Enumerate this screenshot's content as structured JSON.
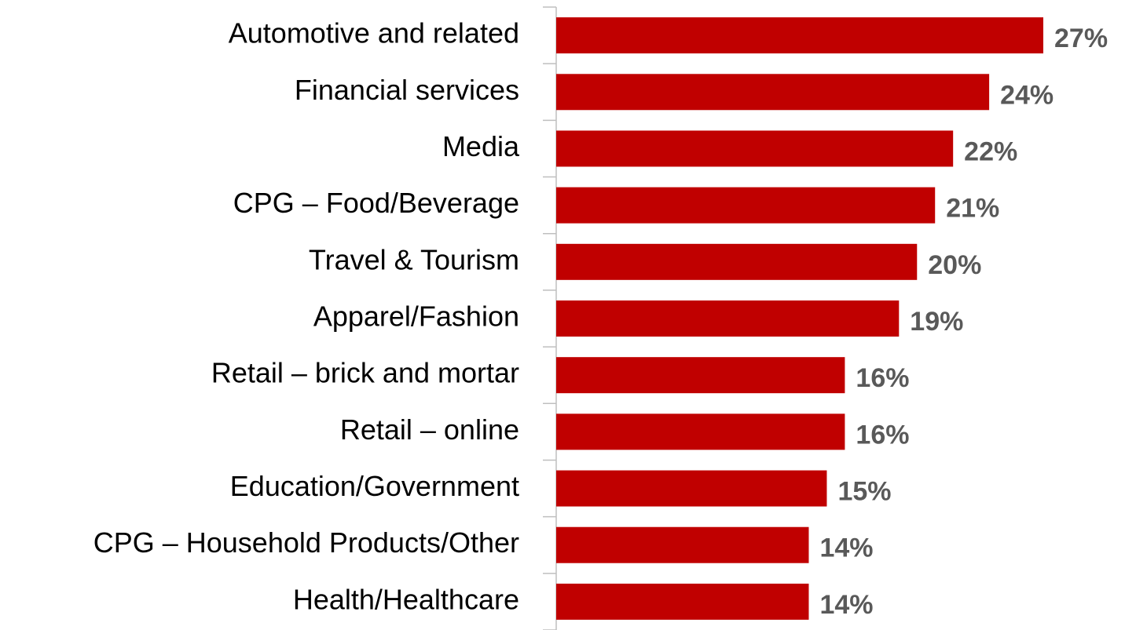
{
  "chart_data": {
    "type": "bar",
    "orientation": "horizontal",
    "categories": [
      "Automotive and related",
      "Financial services",
      "Media",
      "CPG – Food/Beverage",
      "Travel & Tourism",
      "Apparel/Fashion",
      "Retail – brick and mortar",
      "Retail – online",
      "Education/Government",
      "CPG – Household Products/Other",
      "Health/Healthcare"
    ],
    "values": [
      27,
      24,
      22,
      21,
      20,
      19,
      16,
      16,
      15,
      14,
      14
    ],
    "value_labels": [
      "27%",
      "24%",
      "22%",
      "21%",
      "20%",
      "19%",
      "16%",
      "16%",
      "15%",
      "14%",
      "14%"
    ],
    "color": "#c00000"
  }
}
